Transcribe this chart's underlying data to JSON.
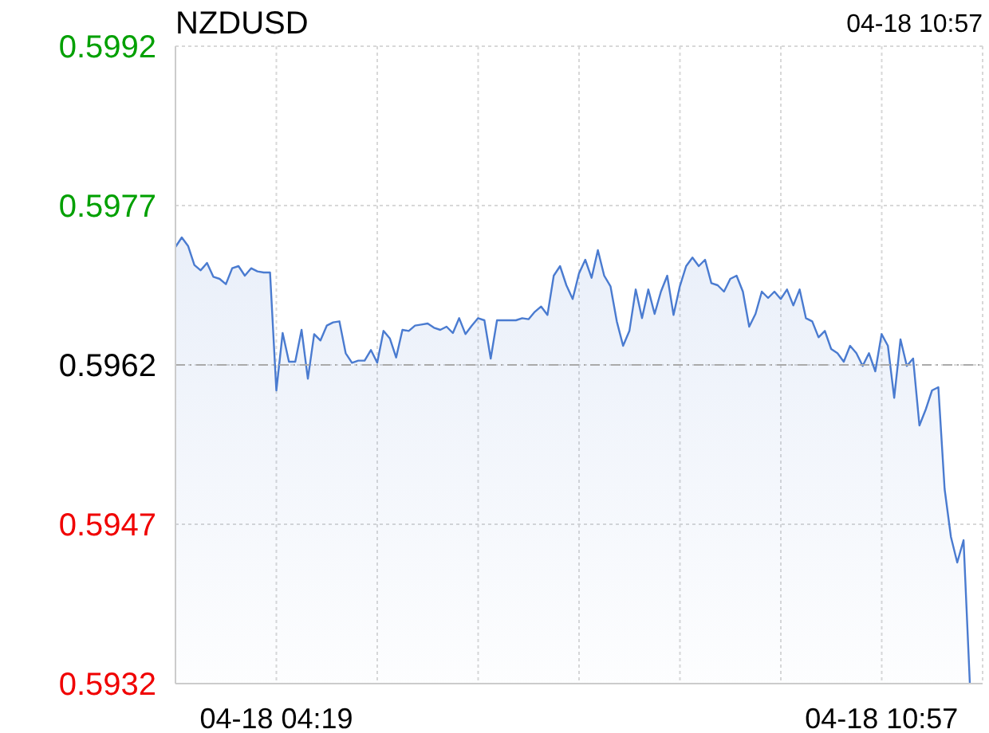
{
  "chart_data": {
    "type": "area",
    "title": "NZDUSD",
    "annotations": [
      "04-18 10:57"
    ],
    "categories": [
      null,
      null,
      null,
      null,
      null,
      null,
      null,
      null,
      null,
      null,
      null,
      null,
      null,
      null,
      null,
      null,
      "04-18 04:19",
      null,
      null,
      null,
      null,
      null,
      null,
      null,
      null,
      null,
      null,
      null,
      null,
      null,
      null,
      null,
      null,
      null,
      null,
      null,
      null,
      null,
      null,
      null,
      null,
      null,
      null,
      null,
      null,
      null,
      null,
      null,
      null,
      null,
      null,
      null,
      null,
      null,
      null,
      null,
      null,
      null,
      null,
      null,
      null,
      null,
      null,
      null,
      null,
      null,
      null,
      null,
      null,
      null,
      null,
      null,
      null,
      null,
      null,
      null,
      null,
      null,
      null,
      null,
      null,
      null,
      null,
      null,
      null,
      null,
      null,
      null,
      null,
      null,
      null,
      null,
      null,
      null,
      null,
      null,
      null,
      null,
      null,
      null,
      null,
      null,
      null,
      null,
      null,
      null,
      null,
      null,
      null,
      null,
      null,
      null,
      "04-18 10:57",
      null,
      null,
      null,
      null,
      null,
      null,
      null,
      null,
      null,
      null,
      null,
      null,
      null,
      null
    ],
    "ylim": [
      0.5932,
      0.5992
    ],
    "yticks": [
      0.5932,
      0.5947,
      0.5962,
      0.5977,
      0.5992
    ],
    "grid": true,
    "marker": "none",
    "line_style": "solid",
    "ref_lines": [
      {
        "axis": "y",
        "value": 0.5962,
        "color": "#aaaaaa",
        "line_style": "dashed"
      }
    ],
    "series": [
      {
        "color": "#4a7bd0",
        "values": [
          0.59731,
          0.5974,
          0.59732,
          0.59714,
          0.59709,
          0.59716,
          0.59703,
          0.59701,
          0.59696,
          0.59711,
          0.59713,
          0.59704,
          0.59711,
          0.59708,
          0.59707,
          0.59707,
          0.59596,
          0.5965,
          0.59623,
          0.59623,
          0.59653,
          0.59607,
          0.59649,
          0.59643,
          0.59657,
          0.5966,
          0.59661,
          0.59631,
          0.59622,
          0.59624,
          0.59624,
          0.59634,
          0.59622,
          0.59652,
          0.59645,
          0.59627,
          0.59653,
          0.59652,
          0.59657,
          0.59658,
          0.59659,
          0.59655,
          0.59653,
          0.59656,
          0.5965,
          0.59664,
          0.59649,
          0.59657,
          0.59664,
          0.59662,
          0.59626,
          0.59662,
          0.59662,
          0.59662,
          0.59662,
          0.59664,
          0.59663,
          0.5967,
          0.59675,
          0.59667,
          0.59704,
          0.59713,
          0.59695,
          0.59682,
          0.59706,
          0.59719,
          0.59702,
          0.59728,
          0.59704,
          0.59694,
          0.59661,
          0.59638,
          0.59652,
          0.59691,
          0.59664,
          0.59691,
          0.59668,
          0.59689,
          0.59704,
          0.59667,
          0.59694,
          0.59713,
          0.59721,
          0.59713,
          0.59719,
          0.59697,
          0.59695,
          0.59689,
          0.59701,
          0.59704,
          0.59689,
          0.59656,
          0.59668,
          0.59689,
          0.59683,
          0.59689,
          0.59682,
          0.59691,
          0.59676,
          0.59691,
          0.59664,
          0.59661,
          0.59646,
          0.59652,
          0.59635,
          0.59631,
          0.59623,
          0.59638,
          0.59631,
          0.59619,
          0.59631,
          0.59614,
          0.59649,
          0.59638,
          0.59589,
          0.59644,
          0.59619,
          0.59626,
          0.59563,
          0.59578,
          0.59596,
          0.59599,
          0.59503,
          0.59458,
          0.59434,
          0.59455,
          0.5932
        ]
      }
    ]
  }
}
